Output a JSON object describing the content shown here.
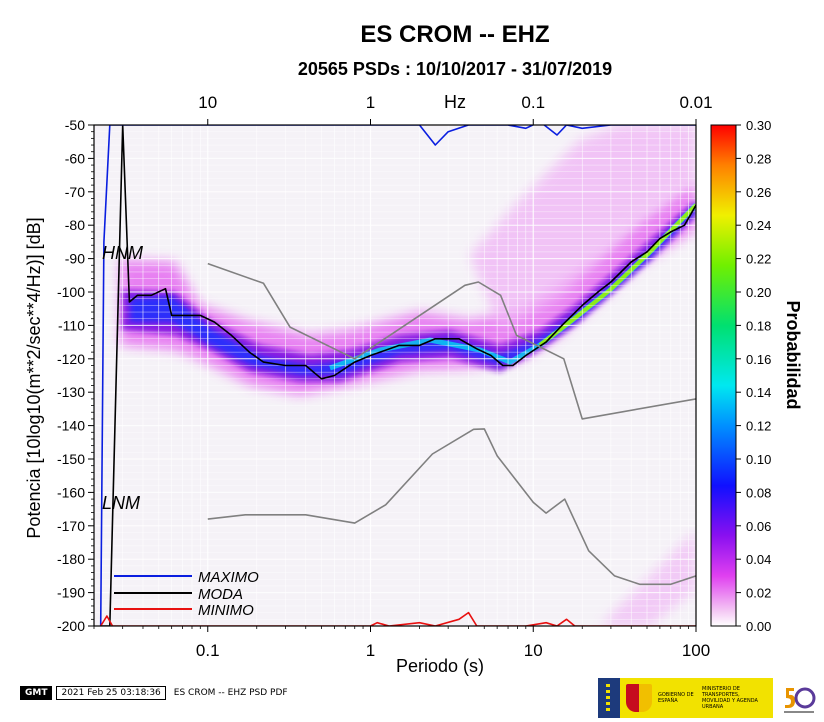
{
  "title": "ES CROM -- EHZ",
  "subtitle": "20565 PSDs : 10/10/2017 - 31/07/2019",
  "colors": {
    "maximo": "#0a1ee0",
    "moda": "#000000",
    "minimo": "#e81010",
    "model": "#808080"
  },
  "footer": {
    "logo": "GMT",
    "timestamp": "2021 Feb 25 03:18:36",
    "caption": "ES CROM -- EHZ PSD PDF"
  },
  "ministry": {
    "line1": "GOBIERNO DE ESPAÑA",
    "line2": "MINISTERIO DE TRANSPORTES, MOVILIDAD Y AGENDA URBANA"
  },
  "chart_data": {
    "type": "heatmap",
    "title": "ES CROM -- EHZ",
    "subtitle": "20565 PSDs : 10/10/2017 - 31/07/2019",
    "xlabel": "Periodo (s)",
    "ylabel": "Potencia [10log10(m**2/sec**4/Hz)] [dB]",
    "top_axis_label": "Hz",
    "x_scale": "log",
    "xlim": [
      0.02,
      100
    ],
    "ylim": [
      -200,
      -50
    ],
    "x_ticks": [
      "0.1",
      "1",
      "10",
      "100"
    ],
    "top_ticks": [
      "10",
      "1",
      "0.1",
      "0.01"
    ],
    "y_ticks": [
      "-50",
      "-60",
      "-70",
      "-80",
      "-90",
      "-100",
      "-110",
      "-120",
      "-130",
      "-140",
      "-150",
      "-160",
      "-170",
      "-180",
      "-190",
      "-200"
    ],
    "colorbar": {
      "label": "Probabilidad",
      "range": [
        0.0,
        0.3
      ],
      "ticks": [
        "0.00",
        "0.02",
        "0.04",
        "0.06",
        "0.08",
        "0.10",
        "0.12",
        "0.14",
        "0.16",
        "0.18",
        "0.20",
        "0.22",
        "0.24",
        "0.26",
        "0.28",
        "0.30"
      ]
    },
    "annotations": [
      "HNM",
      "LNM"
    ],
    "legend": [
      "MAXIMO",
      "MODA",
      "MINIMO"
    ],
    "legend_position": "bottom-left",
    "series": [
      {
        "name": "MODA",
        "points": [
          [
            0.022,
            -200
          ],
          [
            0.025,
            -200
          ],
          [
            0.03,
            -50
          ],
          [
            0.033,
            -103
          ],
          [
            0.037,
            -101
          ],
          [
            0.045,
            -101
          ],
          [
            0.055,
            -99
          ],
          [
            0.06,
            -107
          ],
          [
            0.09,
            -107
          ],
          [
            0.11,
            -109
          ],
          [
            0.14,
            -113
          ],
          [
            0.18,
            -118
          ],
          [
            0.22,
            -121
          ],
          [
            0.3,
            -122
          ],
          [
            0.4,
            -122
          ],
          [
            0.5,
            -126
          ],
          [
            0.6,
            -125
          ],
          [
            0.8,
            -121
          ],
          [
            1.0,
            -119
          ],
          [
            1.5,
            -116
          ],
          [
            2.0,
            -116
          ],
          [
            2.5,
            -114
          ],
          [
            3.5,
            -114
          ],
          [
            4.5,
            -117
          ],
          [
            5.5,
            -119
          ],
          [
            6.5,
            -122
          ],
          [
            7.5,
            -122
          ],
          [
            9.0,
            -119
          ],
          [
            12,
            -115
          ],
          [
            15,
            -110
          ],
          [
            20,
            -104
          ],
          [
            25,
            -100
          ],
          [
            30,
            -97
          ],
          [
            40,
            -91
          ],
          [
            50,
            -88
          ],
          [
            60,
            -84
          ],
          [
            70,
            -82
          ],
          [
            85,
            -80
          ],
          [
            100,
            -74
          ]
        ]
      },
      {
        "name": "MAXIMO",
        "points": [
          [
            0.022,
            -200
          ],
          [
            0.023,
            -85
          ],
          [
            0.025,
            -50
          ],
          [
            0.04,
            -50
          ],
          [
            2.0,
            -50
          ],
          [
            2.5,
            -56
          ],
          [
            3.0,
            -52
          ],
          [
            4.0,
            -50
          ],
          [
            7.0,
            -50
          ],
          [
            9.0,
            -51
          ],
          [
            11,
            -49
          ],
          [
            14,
            -53
          ],
          [
            16,
            -50
          ],
          [
            20,
            -51
          ],
          [
            30,
            -50
          ],
          [
            100,
            -50
          ]
        ]
      },
      {
        "name": "MINIMO",
        "points": [
          [
            0.022,
            -200
          ],
          [
            0.024,
            -197
          ],
          [
            0.026,
            -200
          ],
          [
            1.0,
            -200
          ],
          [
            1.1,
            -199
          ],
          [
            1.3,
            -200
          ],
          [
            2.0,
            -199
          ],
          [
            2.5,
            -200
          ],
          [
            3.5,
            -198
          ],
          [
            4.0,
            -196
          ],
          [
            4.5,
            -200
          ],
          [
            7.0,
            -200
          ],
          [
            9.0,
            -200
          ],
          [
            12,
            -199
          ],
          [
            14,
            -200
          ],
          [
            16,
            -198
          ],
          [
            18,
            -200
          ],
          [
            100,
            -200
          ]
        ]
      },
      {
        "name": "HNM",
        "points": [
          [
            0.1,
            -91.5
          ],
          [
            0.22,
            -97.4
          ],
          [
            0.32,
            -110.5
          ],
          [
            0.8,
            -120
          ],
          [
            3.8,
            -98
          ],
          [
            4.6,
            -97
          ],
          [
            6.3,
            -101
          ],
          [
            7.9,
            -113
          ],
          [
            15.4,
            -120
          ],
          [
            20,
            -138
          ],
          [
            100,
            -132
          ]
        ]
      },
      {
        "name": "LNM",
        "points": [
          [
            0.1,
            -168
          ],
          [
            0.17,
            -166.7
          ],
          [
            0.4,
            -166.7
          ],
          [
            0.8,
            -169.2
          ],
          [
            1.24,
            -163.7
          ],
          [
            2.4,
            -148.5
          ],
          [
            4.3,
            -141.1
          ],
          [
            5.0,
            -141
          ],
          [
            6.0,
            -149
          ],
          [
            10,
            -163
          ],
          [
            12,
            -166.2
          ],
          [
            15.6,
            -162
          ],
          [
            21.9,
            -177.5
          ],
          [
            31.6,
            -185
          ],
          [
            45,
            -187.5
          ],
          [
            70,
            -187.5
          ],
          [
            100,
            -185
          ]
        ]
      }
    ]
  }
}
